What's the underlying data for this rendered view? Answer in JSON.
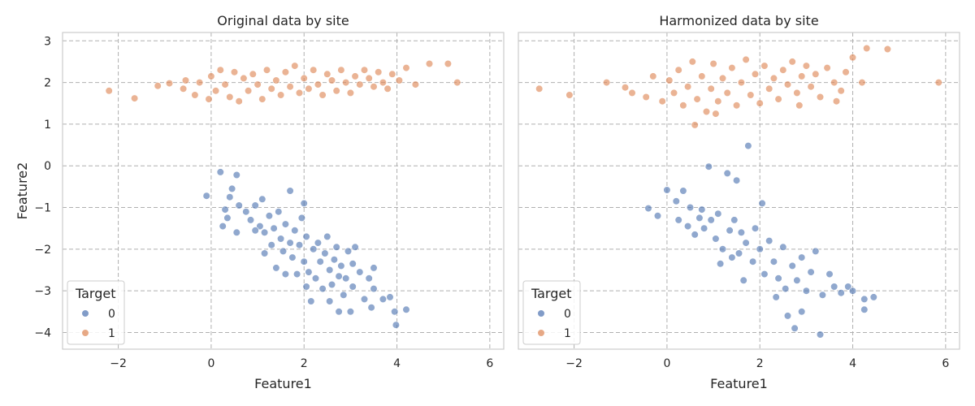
{
  "chart_data": [
    {
      "type": "scatter",
      "title": "Original data by site",
      "xlabel": "Feature1",
      "ylabel": "Feature2",
      "xlim": [
        -3.2,
        6.3
      ],
      "ylim": [
        -4.4,
        3.2
      ],
      "xticks": [
        -2,
        0,
        2,
        4,
        6
      ],
      "yticks": [
        -4,
        -3,
        -2,
        -1,
        0,
        1,
        2,
        3
      ],
      "grid": true,
      "legend": {
        "title": "Target",
        "position": "lower-left"
      },
      "series": [
        {
          "name": "0",
          "color": "#4c72b0",
          "points": [
            [
              -0.1,
              -0.72
            ],
            [
              0.2,
              -0.15
            ],
            [
              0.55,
              -0.22
            ],
            [
              0.45,
              -0.55
            ],
            [
              0.4,
              -0.75
            ],
            [
              0.3,
              -1.05
            ],
            [
              0.35,
              -1.25
            ],
            [
              0.6,
              -0.95
            ],
            [
              0.55,
              -1.6
            ],
            [
              0.75,
              -1.1
            ],
            [
              0.85,
              -1.3
            ],
            [
              0.95,
              -0.95
            ],
            [
              1.05,
              -1.45
            ],
            [
              1.1,
              -0.8
            ],
            [
              1.15,
              -1.6
            ],
            [
              1.25,
              -1.2
            ],
            [
              1.3,
              -1.9
            ],
            [
              1.35,
              -1.5
            ],
            [
              1.45,
              -1.1
            ],
            [
              1.5,
              -1.75
            ],
            [
              1.55,
              -2.05
            ],
            [
              1.6,
              -1.4
            ],
            [
              1.7,
              -0.6
            ],
            [
              1.7,
              -1.85
            ],
            [
              1.75,
              -2.2
            ],
            [
              1.8,
              -1.55
            ],
            [
              1.85,
              -2.6
            ],
            [
              1.9,
              -1.9
            ],
            [
              1.95,
              -1.25
            ],
            [
              2.0,
              -2.3
            ],
            [
              2.0,
              -0.9
            ],
            [
              2.05,
              -1.7
            ],
            [
              2.1,
              -2.55
            ],
            [
              2.15,
              -3.25
            ],
            [
              2.2,
              -2.0
            ],
            [
              2.25,
              -2.7
            ],
            [
              2.3,
              -1.85
            ],
            [
              2.35,
              -2.3
            ],
            [
              2.4,
              -2.95
            ],
            [
              2.45,
              -2.1
            ],
            [
              2.5,
              -1.7
            ],
            [
              2.55,
              -2.5
            ],
            [
              2.6,
              -2.85
            ],
            [
              2.65,
              -2.25
            ],
            [
              2.7,
              -1.95
            ],
            [
              2.75,
              -2.65
            ],
            [
              2.75,
              -3.5
            ],
            [
              2.8,
              -2.4
            ],
            [
              2.85,
              -3.1
            ],
            [
              2.9,
              -2.7
            ],
            [
              2.95,
              -2.05
            ],
            [
              3.0,
              -3.5
            ],
            [
              3.05,
              -2.9
            ],
            [
              3.1,
              -1.95
            ],
            [
              3.2,
              -2.55
            ],
            [
              3.3,
              -3.2
            ],
            [
              3.4,
              -2.7
            ],
            [
              3.45,
              -3.4
            ],
            [
              3.5,
              -2.95
            ],
            [
              3.5,
              -2.45
            ],
            [
              3.7,
              -3.2
            ],
            [
              3.85,
              -3.15
            ],
            [
              3.95,
              -3.5
            ],
            [
              3.98,
              -3.82
            ],
            [
              4.2,
              -3.45
            ],
            [
              1.15,
              -2.1
            ],
            [
              1.6,
              -2.6
            ],
            [
              2.05,
              -2.9
            ],
            [
              0.25,
              -1.45
            ],
            [
              0.95,
              -1.55
            ],
            [
              1.4,
              -2.45
            ],
            [
              2.55,
              -3.25
            ],
            [
              3.05,
              -2.35
            ]
          ]
        },
        {
          "name": "1",
          "color": "#dd8452",
          "points": [
            [
              -2.2,
              1.8
            ],
            [
              -1.65,
              1.62
            ],
            [
              -1.15,
              1.92
            ],
            [
              -0.9,
              1.98
            ],
            [
              -0.6,
              1.85
            ],
            [
              -0.55,
              2.05
            ],
            [
              -0.35,
              1.7
            ],
            [
              -0.25,
              2.0
            ],
            [
              -0.05,
              1.6
            ],
            [
              0.0,
              2.15
            ],
            [
              0.1,
              1.8
            ],
            [
              0.2,
              2.3
            ],
            [
              0.3,
              1.95
            ],
            [
              0.4,
              1.65
            ],
            [
              0.5,
              2.25
            ],
            [
              0.6,
              1.55
            ],
            [
              0.7,
              2.1
            ],
            [
              0.8,
              1.8
            ],
            [
              0.9,
              2.2
            ],
            [
              1.0,
              1.95
            ],
            [
              1.1,
              1.6
            ],
            [
              1.2,
              2.3
            ],
            [
              1.3,
              1.85
            ],
            [
              1.4,
              2.05
            ],
            [
              1.5,
              1.7
            ],
            [
              1.6,
              2.25
            ],
            [
              1.7,
              1.9
            ],
            [
              1.8,
              2.4
            ],
            [
              1.9,
              1.75
            ],
            [
              2.0,
              2.1
            ],
            [
              2.1,
              1.85
            ],
            [
              2.2,
              2.3
            ],
            [
              2.3,
              1.95
            ],
            [
              2.4,
              1.7
            ],
            [
              2.5,
              2.2
            ],
            [
              2.6,
              2.05
            ],
            [
              2.7,
              1.8
            ],
            [
              2.8,
              2.3
            ],
            [
              2.9,
              2.0
            ],
            [
              3.0,
              1.75
            ],
            [
              3.1,
              2.15
            ],
            [
              3.2,
              1.95
            ],
            [
              3.3,
              2.3
            ],
            [
              3.4,
              2.1
            ],
            [
              3.5,
              1.9
            ],
            [
              3.6,
              2.25
            ],
            [
              3.7,
              2.0
            ],
            [
              3.8,
              1.85
            ],
            [
              3.9,
              2.2
            ],
            [
              4.05,
              2.05
            ],
            [
              4.2,
              2.35
            ],
            [
              4.4,
              1.95
            ],
            [
              4.7,
              2.45
            ],
            [
              5.1,
              2.45
            ],
            [
              5.3,
              2.0
            ]
          ]
        }
      ]
    },
    {
      "type": "scatter",
      "title": "Harmonized data by site",
      "xlabel": "Feature1",
      "ylabel": "",
      "xlim": [
        -3.2,
        6.3
      ],
      "ylim": [
        -4.4,
        3.2
      ],
      "xticks": [
        -2,
        0,
        2,
        4,
        6
      ],
      "yticks": [
        -4,
        -3,
        -2,
        -1,
        0,
        1,
        2,
        3
      ],
      "grid": true,
      "legend": {
        "title": "Target",
        "position": "lower-left"
      },
      "series": [
        {
          "name": "0",
          "color": "#4c72b0",
          "points": [
            [
              -0.4,
              -1.02
            ],
            [
              -0.2,
              -1.2
            ],
            [
              0.0,
              -0.58
            ],
            [
              0.2,
              -0.85
            ],
            [
              0.25,
              -1.3
            ],
            [
              0.35,
              -0.6
            ],
            [
              0.45,
              -1.45
            ],
            [
              0.5,
              -1.0
            ],
            [
              0.6,
              -1.65
            ],
            [
              0.7,
              -1.25
            ],
            [
              0.8,
              -1.5
            ],
            [
              0.9,
              -0.02
            ],
            [
              0.95,
              -1.3
            ],
            [
              1.05,
              -1.75
            ],
            [
              1.1,
              -1.15
            ],
            [
              1.2,
              -2.0
            ],
            [
              1.3,
              -0.18
            ],
            [
              1.35,
              -1.55
            ],
            [
              1.45,
              -1.3
            ],
            [
              1.5,
              -0.35
            ],
            [
              1.55,
              -2.1
            ],
            [
              1.6,
              -1.6
            ],
            [
              1.7,
              -1.85
            ],
            [
              1.75,
              0.48
            ],
            [
              1.85,
              -2.3
            ],
            [
              1.9,
              -1.5
            ],
            [
              2.0,
              -2.0
            ],
            [
              2.05,
              -0.9
            ],
            [
              2.1,
              -2.6
            ],
            [
              2.2,
              -1.8
            ],
            [
              2.3,
              -2.3
            ],
            [
              2.4,
              -2.7
            ],
            [
              2.5,
              -1.95
            ],
            [
              2.6,
              -3.6
            ],
            [
              2.7,
              -2.4
            ],
            [
              2.75,
              -3.9
            ],
            [
              2.8,
              -2.75
            ],
            [
              2.9,
              -2.2
            ],
            [
              3.0,
              -3.0
            ],
            [
              3.1,
              -2.55
            ],
            [
              3.2,
              -2.05
            ],
            [
              3.3,
              -4.05
            ],
            [
              3.35,
              -3.1
            ],
            [
              3.5,
              -2.6
            ],
            [
              3.6,
              -2.9
            ],
            [
              3.75,
              -3.05
            ],
            [
              3.9,
              -2.9
            ],
            [
              4.0,
              -3.0
            ],
            [
              4.25,
              -3.2
            ],
            [
              4.25,
              -3.45
            ],
            [
              4.45,
              -3.15
            ],
            [
              1.15,
              -2.35
            ],
            [
              1.65,
              -2.75
            ],
            [
              2.35,
              -3.15
            ],
            [
              2.9,
              -3.5
            ],
            [
              0.75,
              -1.05
            ],
            [
              1.4,
              -2.2
            ],
            [
              2.55,
              -2.95
            ]
          ]
        },
        {
          "name": "1",
          "color": "#dd8452",
          "points": [
            [
              -2.75,
              1.85
            ],
            [
              -2.1,
              1.7
            ],
            [
              -1.3,
              2.0
            ],
            [
              -0.9,
              1.88
            ],
            [
              -0.75,
              1.75
            ],
            [
              -0.45,
              1.65
            ],
            [
              -0.3,
              2.15
            ],
            [
              -0.1,
              1.55
            ],
            [
              0.05,
              2.05
            ],
            [
              0.15,
              1.75
            ],
            [
              0.25,
              2.3
            ],
            [
              0.35,
              1.45
            ],
            [
              0.45,
              1.9
            ],
            [
              0.55,
              2.5
            ],
            [
              0.6,
              0.98
            ],
            [
              0.65,
              1.6
            ],
            [
              0.75,
              2.15
            ],
            [
              0.85,
              1.3
            ],
            [
              0.95,
              1.85
            ],
            [
              1.0,
              2.45
            ],
            [
              1.1,
              1.55
            ],
            [
              1.2,
              2.1
            ],
            [
              1.3,
              1.75
            ],
            [
              1.4,
              2.35
            ],
            [
              1.5,
              1.45
            ],
            [
              1.6,
              2.0
            ],
            [
              1.7,
              2.55
            ],
            [
              1.8,
              1.7
            ],
            [
              1.9,
              2.2
            ],
            [
              2.0,
              1.5
            ],
            [
              2.1,
              2.4
            ],
            [
              2.2,
              1.85
            ],
            [
              2.3,
              2.1
            ],
            [
              2.4,
              1.6
            ],
            [
              2.5,
              2.3
            ],
            [
              2.6,
              1.95
            ],
            [
              2.7,
              2.5
            ],
            [
              2.8,
              1.75
            ],
            [
              2.9,
              2.15
            ],
            [
              3.0,
              2.4
            ],
            [
              3.1,
              1.9
            ],
            [
              3.2,
              2.2
            ],
            [
              3.3,
              1.65
            ],
            [
              3.45,
              2.35
            ],
            [
              3.6,
              2.0
            ],
            [
              3.75,
              1.8
            ],
            [
              3.85,
              2.25
            ],
            [
              4.0,
              2.6
            ],
            [
              4.2,
              2.0
            ],
            [
              4.3,
              2.82
            ],
            [
              4.75,
              2.8
            ],
            [
              5.85,
              2.0
            ],
            [
              1.05,
              1.25
            ],
            [
              2.85,
              1.45
            ],
            [
              3.65,
              1.55
            ]
          ]
        }
      ]
    }
  ]
}
